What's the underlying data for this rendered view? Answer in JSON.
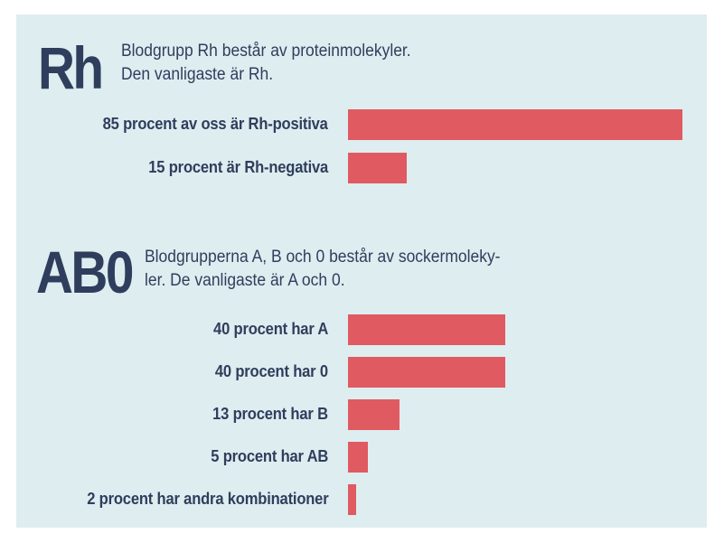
{
  "rh": {
    "heading": "Rh",
    "description_lines": [
      "Blodgrupp Rh består av proteinmolekyler.",
      "Den vanligaste är Rh."
    ]
  },
  "ab0": {
    "heading": "AB0",
    "description_lines": [
      "Blodgrupperna A, B och 0 består av sockermoleky-",
      "ler. De vanligaste är A och 0."
    ]
  },
  "chart_data": [
    {
      "type": "bar",
      "orientation": "horizontal",
      "title": "",
      "categories": [
        "85 procent av oss är Rh-positiva",
        "15 procent är Rh-negativa"
      ],
      "values": [
        85,
        15
      ],
      "unit": "percent",
      "xlim": [
        0,
        85
      ],
      "grid": false,
      "bar_color": "#e05a61"
    },
    {
      "type": "bar",
      "orientation": "horizontal",
      "title": "",
      "categories": [
        "40 procent har A",
        "40 procent har 0",
        "13 procent har B",
        "5 procent har AB",
        "2 procent har andra kombinationer"
      ],
      "values": [
        40,
        40,
        13,
        5,
        2
      ],
      "unit": "percent",
      "xlim": [
        0,
        85
      ],
      "grid": false,
      "bar_color": "#e05a61"
    }
  ]
}
